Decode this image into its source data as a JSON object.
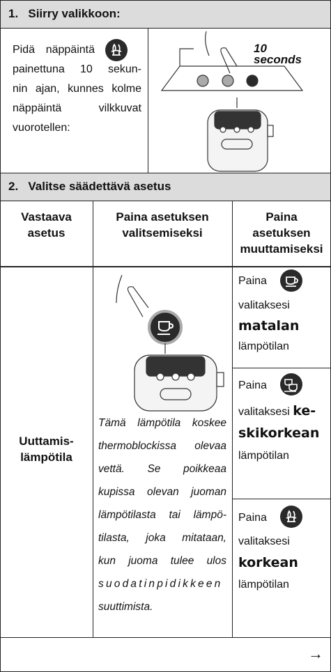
{
  "step1": {
    "number": "1.",
    "title": "Siirry valikkoon:",
    "text_lines": [
      "Pidä näppäintä",
      "painettuna 10 sekun-",
      "nin ajan, kunnes kolme",
      "näppäintä vilkkuvat",
      "vuorotellen:"
    ],
    "illustration_label": [
      "10",
      "seconds"
    ]
  },
  "step2": {
    "number": "2.",
    "title": "Valitse säädettävä asetus",
    "columns": [
      [
        "Vastaava",
        "asetus"
      ],
      [
        "Paina asetuksen",
        "valitsemiseksi"
      ],
      [
        "Paina",
        "asetuksen",
        "muuttamiseksi"
      ]
    ],
    "setting": [
      "Uuttamis-",
      "lämpötila"
    ],
    "note_lines": [
      "Tämä lämpötila koskee",
      "thermoblockissa olevaa",
      "vettä. Se poikkeaa",
      "kupissa olevan juoman",
      "lämpötilasta tai lämpö-",
      "tilasta, joka mitataan,",
      "kun juoma tulee ulos",
      "suodatinpidikkeen",
      "suuttimista."
    ],
    "options": [
      {
        "prefix": "Paina",
        "verb": "valitaksesi",
        "level": [
          "matalan"
        ],
        "suffix": "lämpötilan"
      },
      {
        "prefix": "Paina",
        "verb": "valitaksesi",
        "level": [
          "ke-",
          "skikorkean"
        ],
        "suffix": "lämpötilan"
      },
      {
        "prefix": "Paina",
        "verb": "valitaksesi",
        "level": [
          "korkean"
        ],
        "suffix": "lämpötilan"
      }
    ]
  },
  "footer": {
    "arrow": "→"
  }
}
